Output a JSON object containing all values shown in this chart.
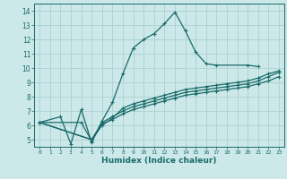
{
  "title": "",
  "xlabel": "Humidex (Indice chaleur)",
  "xlim": [
    -0.5,
    23.5
  ],
  "ylim": [
    4.5,
    14.5
  ],
  "xticks": [
    0,
    1,
    2,
    3,
    4,
    5,
    6,
    7,
    8,
    9,
    10,
    11,
    12,
    13,
    14,
    15,
    16,
    17,
    18,
    19,
    20,
    21,
    22,
    23
  ],
  "yticks": [
    5,
    6,
    7,
    8,
    9,
    10,
    11,
    12,
    13,
    14
  ],
  "bg_color": "#cce8e8",
  "grid_color": "#afd4d4",
  "line_color": "#1a6b6b",
  "lines": [
    {
      "x": [
        0,
        2,
        3,
        4,
        5,
        6,
        7,
        8,
        9,
        10,
        11,
        12,
        13,
        14,
        15,
        16,
        17,
        20,
        21
      ],
      "y": [
        6.2,
        6.6,
        4.7,
        7.1,
        4.8,
        6.3,
        7.6,
        9.6,
        11.4,
        12.0,
        12.4,
        13.1,
        13.9,
        12.6,
        11.1,
        10.3,
        10.2,
        10.2,
        10.1
      ]
    },
    {
      "x": [
        0,
        5,
        6,
        7,
        8,
        9,
        10,
        11,
        12,
        13,
        14,
        15,
        16,
        17,
        18,
        19,
        20,
        21,
        22,
        23
      ],
      "y": [
        6.2,
        5.0,
        6.0,
        6.5,
        7.2,
        7.5,
        7.7,
        7.9,
        8.1,
        8.3,
        8.5,
        8.6,
        8.7,
        8.8,
        8.9,
        9.0,
        9.1,
        9.3,
        9.6,
        9.8
      ]
    },
    {
      "x": [
        0,
        5,
        6,
        7,
        8,
        9,
        10,
        11,
        12,
        13,
        14,
        15,
        16,
        17,
        18,
        19,
        20,
        21,
        22,
        23
      ],
      "y": [
        6.2,
        5.0,
        6.2,
        6.6,
        7.0,
        7.3,
        7.5,
        7.7,
        7.9,
        8.1,
        8.3,
        8.4,
        8.5,
        8.6,
        8.7,
        8.8,
        8.9,
        9.1,
        9.4,
        9.7
      ]
    },
    {
      "x": [
        0,
        4,
        5,
        6,
        7,
        8,
        9,
        10,
        11,
        12,
        13,
        14,
        15,
        16,
        17,
        18,
        19,
        20,
        21,
        22,
        23
      ],
      "y": [
        6.2,
        6.2,
        4.9,
        6.1,
        6.4,
        6.8,
        7.1,
        7.3,
        7.5,
        7.7,
        7.9,
        8.1,
        8.2,
        8.3,
        8.4,
        8.5,
        8.6,
        8.7,
        8.9,
        9.1,
        9.4
      ]
    }
  ]
}
